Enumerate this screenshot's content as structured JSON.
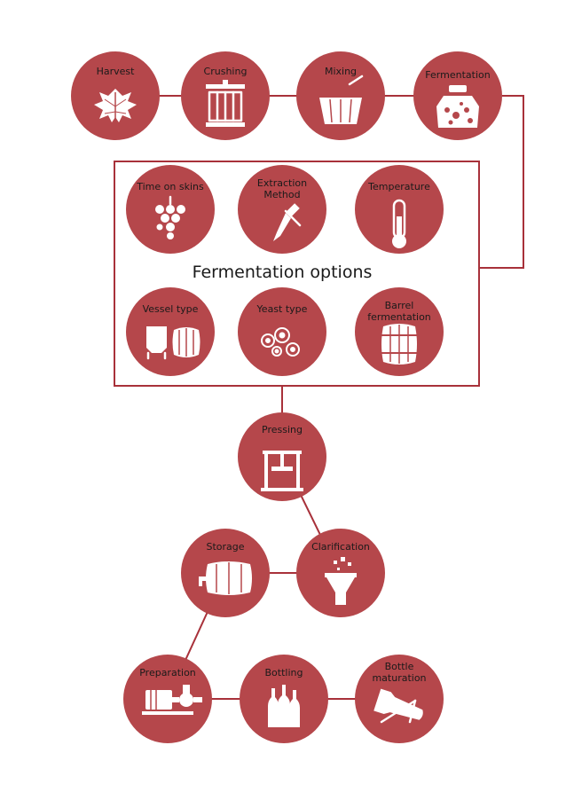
{
  "colors": {
    "node": "#b5474b",
    "line": "#a8313a",
    "icon": "#ffffff",
    "text": "#1a1a1a"
  },
  "steps": {
    "harvest": "Harvest",
    "crushing": "Crushing",
    "mixing": "Mixing",
    "fermentation": "Fermentation",
    "pressing": "Pressing",
    "storage": "Storage",
    "clarification": "Clarification",
    "preparation": "Preparation",
    "bottling": "Bottling",
    "bottle_maturation": [
      "Bottle",
      "maturation"
    ]
  },
  "fermentation_options": {
    "title": "Fermentation options",
    "time_on_skins": "Time on skins",
    "extraction_method": [
      "Extraction",
      "Method"
    ],
    "temperature": "Temperature",
    "vessel_type": "Vessel type",
    "yeast_type": "Yeast type",
    "barrel_fermentation": [
      "Barrel",
      "fermentation"
    ]
  },
  "icons": {
    "harvest": "grape-leaf-icon",
    "crushing": "wine-press-icon",
    "mixing": "vat-with-paddle-icon",
    "fermentation": "fermenting-jar-icon",
    "time_on_skins": "grape-bunch-icon",
    "extraction_method": "pipette-icon",
    "temperature": "thermometer-icon",
    "vessel_type": "tank-and-barrel-icon",
    "yeast_type": "yeast-cells-icon",
    "barrel_fermentation": "barrel-icon",
    "pressing": "press-icon",
    "storage": "barrel-with-tap-icon",
    "clarification": "funnel-icon",
    "preparation": "pump-motor-icon",
    "bottling": "bottles-icon",
    "bottle_maturation": "bottle-in-rack-icon"
  }
}
